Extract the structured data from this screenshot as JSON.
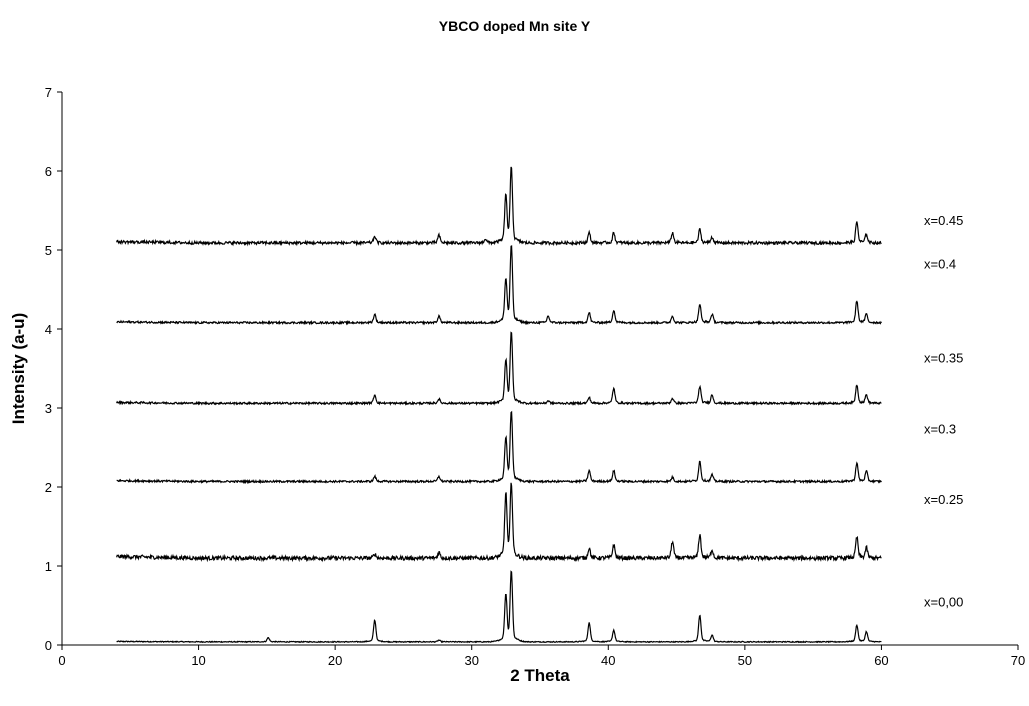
{
  "chart_data": {
    "type": "line",
    "title": "YBCO doped Mn site Y",
    "xlabel": "2 Theta",
    "ylabel": "Intensity (a-u)",
    "xlim": [
      0,
      70
    ],
    "ylim": [
      0,
      7
    ],
    "xticks": [
      "0",
      "10",
      "20",
      "30",
      "40",
      "50",
      "60",
      "70"
    ],
    "yticks": [
      "0",
      "1",
      "2",
      "3",
      "4",
      "5",
      "6",
      "7"
    ],
    "grid": false,
    "legend": "none",
    "line_color": "#000000",
    "x_range": [
      4,
      60
    ],
    "series": [
      {
        "name": "x=0,00",
        "label": "x=0,00",
        "label_y": 0.55,
        "baseline": 0.04,
        "noise": 0.006,
        "peaks": [
          [
            15.1,
            0.05
          ],
          [
            22.9,
            0.26
          ],
          [
            27.6,
            0.02
          ],
          [
            32.5,
            0.55
          ],
          [
            32.9,
            0.84
          ],
          [
            38.6,
            0.23
          ],
          [
            40.4,
            0.14
          ],
          [
            46.7,
            0.32
          ],
          [
            47.6,
            0.08
          ],
          [
            58.2,
            0.2
          ],
          [
            58.9,
            0.12
          ]
        ]
      },
      {
        "name": "x=0.25",
        "label": "x=0.25",
        "label_y": 1.85,
        "baseline": 1.1,
        "noise": 0.025,
        "peaks": [
          [
            22.9,
            0.05
          ],
          [
            27.6,
            0.07
          ],
          [
            32.5,
            0.75
          ],
          [
            32.9,
            0.88
          ],
          [
            38.6,
            0.12
          ],
          [
            40.4,
            0.16
          ],
          [
            44.7,
            0.2
          ],
          [
            46.7,
            0.28
          ],
          [
            47.6,
            0.1
          ],
          [
            58.2,
            0.25
          ],
          [
            58.9,
            0.12
          ]
        ]
      },
      {
        "name": "x=0.3",
        "label": "x=0.3",
        "label_y": 2.74,
        "baseline": 2.07,
        "noise": 0.012,
        "peaks": [
          [
            22.9,
            0.06
          ],
          [
            27.6,
            0.06
          ],
          [
            32.5,
            0.5
          ],
          [
            32.9,
            0.83
          ],
          [
            38.6,
            0.13
          ],
          [
            40.4,
            0.13
          ],
          [
            44.7,
            0.05
          ],
          [
            46.7,
            0.24
          ],
          [
            47.6,
            0.08
          ],
          [
            58.2,
            0.22
          ],
          [
            58.9,
            0.12
          ]
        ]
      },
      {
        "name": "x=0.35",
        "label": "x=0.35",
        "label_y": 3.64,
        "baseline": 3.06,
        "noise": 0.012,
        "peaks": [
          [
            22.9,
            0.1
          ],
          [
            27.6,
            0.05
          ],
          [
            32.5,
            0.5
          ],
          [
            32.9,
            0.85
          ],
          [
            35.6,
            0.03
          ],
          [
            38.6,
            0.07
          ],
          [
            40.4,
            0.18
          ],
          [
            44.7,
            0.06
          ],
          [
            46.7,
            0.2
          ],
          [
            47.6,
            0.1
          ],
          [
            58.2,
            0.22
          ],
          [
            58.9,
            0.1
          ]
        ]
      },
      {
        "name": "x=0.4",
        "label": "x=0.4",
        "label_y": 4.83,
        "baseline": 4.08,
        "noise": 0.012,
        "peaks": [
          [
            22.9,
            0.1
          ],
          [
            27.6,
            0.08
          ],
          [
            32.5,
            0.5
          ],
          [
            32.9,
            0.92
          ],
          [
            35.6,
            0.08
          ],
          [
            38.6,
            0.12
          ],
          [
            40.4,
            0.15
          ],
          [
            44.7,
            0.08
          ],
          [
            46.7,
            0.22
          ],
          [
            47.6,
            0.1
          ],
          [
            58.2,
            0.26
          ],
          [
            58.9,
            0.1
          ]
        ]
      },
      {
        "name": "x=0.45",
        "label": "x=0.45",
        "label_y": 5.38,
        "baseline": 5.09,
        "noise": 0.018,
        "peaks": [
          [
            22.9,
            0.08
          ],
          [
            27.6,
            0.09
          ],
          [
            31.0,
            0.05
          ],
          [
            32.5,
            0.55
          ],
          [
            32.9,
            0.9
          ],
          [
            38.6,
            0.12
          ],
          [
            40.4,
            0.12
          ],
          [
            44.7,
            0.12
          ],
          [
            46.7,
            0.16
          ],
          [
            47.6,
            0.07
          ],
          [
            58.2,
            0.25
          ],
          [
            58.9,
            0.1
          ]
        ]
      }
    ]
  }
}
